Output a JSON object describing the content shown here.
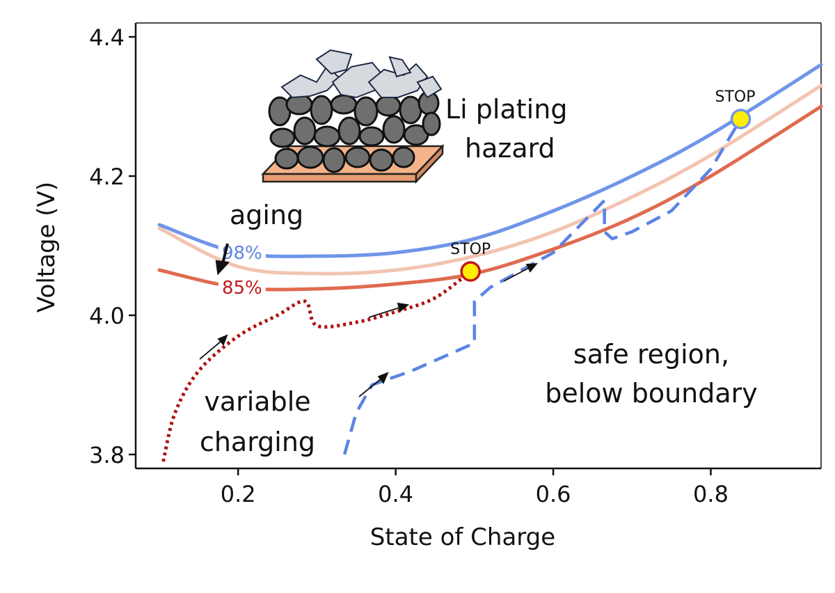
{
  "chart_data": {
    "type": "line",
    "title": "",
    "xlabel": "State of Charge",
    "ylabel": "Voltage (V)",
    "xlim": [
      0.07,
      0.94
    ],
    "ylim": [
      3.78,
      4.42
    ],
    "xticks": [
      0.2,
      0.4,
      0.6,
      0.8
    ],
    "xtick_labels": [
      "0.2",
      "0.4",
      "0.6",
      "0.8"
    ],
    "yticks": [
      3.8,
      4.0,
      4.2,
      4.4
    ],
    "ytick_labels": [
      "3.8",
      "4.0",
      "4.2",
      "4.4"
    ],
    "grid": false,
    "series": [
      {
        "name": "98%",
        "style": "solid",
        "color": "#6f95e8",
        "x": [
          0.1,
          0.2,
          0.3,
          0.4,
          0.5,
          0.6,
          0.7,
          0.8,
          0.94
        ],
        "y": [
          4.13,
          4.09,
          4.085,
          4.09,
          4.11,
          4.15,
          4.2,
          4.26,
          4.36
        ]
      },
      {
        "name": "",
        "style": "solid",
        "color": "#f2c4b0",
        "x": [
          0.1,
          0.2,
          0.3,
          0.4,
          0.5,
          0.6,
          0.7,
          0.8,
          0.94
        ],
        "y": [
          4.125,
          4.07,
          4.06,
          4.065,
          4.085,
          4.12,
          4.17,
          4.23,
          4.33
        ]
      },
      {
        "name": "85%",
        "style": "solid",
        "color": "#e06a50",
        "x": [
          0.1,
          0.2,
          0.3,
          0.4,
          0.5,
          0.6,
          0.7,
          0.8,
          0.94
        ],
        "y": [
          4.065,
          4.04,
          4.038,
          4.045,
          4.06,
          4.095,
          4.14,
          4.2,
          4.3
        ]
      },
      {
        "name": "variable charging (dotted)",
        "style": "dotted",
        "color": "#b01010",
        "x": [
          0.105,
          0.12,
          0.15,
          0.2,
          0.25,
          0.285,
          0.3,
          0.35,
          0.4,
          0.45,
          0.495
        ],
        "y": [
          3.79,
          3.86,
          3.92,
          3.97,
          4.0,
          4.02,
          3.985,
          3.99,
          4.005,
          4.025,
          4.063
        ]
      },
      {
        "name": "variable charging (dashed)",
        "style": "dashed",
        "color": "#5b84e6",
        "x": [
          0.335,
          0.35,
          0.37,
          0.42,
          0.5,
          0.5,
          0.52,
          0.6,
          0.665,
          0.665,
          0.675,
          0.7,
          0.75,
          0.8,
          0.838
        ],
        "y": [
          3.8,
          3.86,
          3.9,
          3.92,
          3.96,
          4.02,
          4.04,
          4.09,
          4.165,
          4.12,
          4.11,
          4.12,
          4.15,
          4.21,
          4.282
        ]
      }
    ],
    "stop_points": [
      {
        "label": "STOP",
        "x": 0.495,
        "y": 4.063,
        "edge_color": "#c01818"
      },
      {
        "label": "STOP",
        "x": 0.838,
        "y": 4.282,
        "edge_color": "#6f95e8"
      }
    ],
    "annotations": {
      "hazard_line1": "Li plating",
      "hazard_line2": "hazard",
      "aging": "aging",
      "safe_line1": "safe region,",
      "safe_line2": "below boundary",
      "variable_line1": "variable",
      "variable_line2": "charging"
    },
    "stop_fill": "#ffee00",
    "axis_color": "#111111"
  }
}
